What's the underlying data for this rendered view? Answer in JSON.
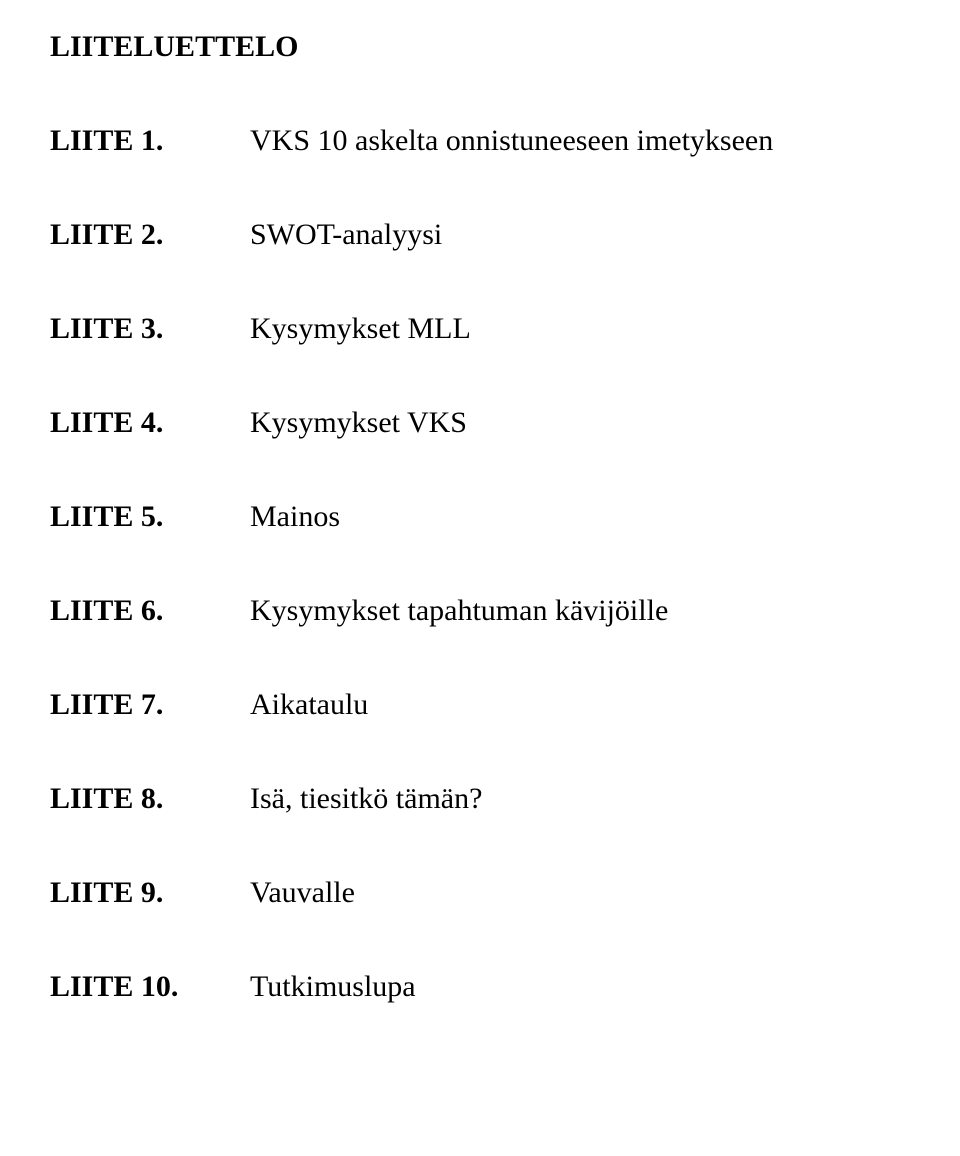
{
  "title": "LIITELUETTELO",
  "entries": [
    {
      "label": "LIITE 1.",
      "desc": "VKS 10 askelta onnistuneeseen imetykseen"
    },
    {
      "label": "LIITE 2.",
      "desc": "SWOT-analyysi"
    },
    {
      "label": "LIITE 3.",
      "desc": "Kysymykset MLL"
    },
    {
      "label": "LIITE 4.",
      "desc": "Kysymykset VKS"
    },
    {
      "label": "LIITE 5.",
      "desc": "Mainos"
    },
    {
      "label": "LIITE 6.",
      "desc": "Kysymykset tapahtuman kävijöille"
    },
    {
      "label": "LIITE 7.",
      "desc": "Aikataulu"
    },
    {
      "label": "LIITE 8.",
      "desc": "Isä, tiesitkö tämän?"
    },
    {
      "label": "LIITE 9.",
      "desc": "Vauvalle"
    },
    {
      "label": "LIITE 10.",
      "desc": "Tutkimuslupa"
    }
  ],
  "colors": {
    "background": "#ffffff",
    "text": "#000000"
  },
  "typography": {
    "font_family": "Times New Roman",
    "title_fontsize_pt": 22,
    "title_weight": "bold",
    "label_fontsize_pt": 22,
    "label_weight": "bold",
    "desc_fontsize_pt": 22,
    "desc_weight": "normal"
  }
}
